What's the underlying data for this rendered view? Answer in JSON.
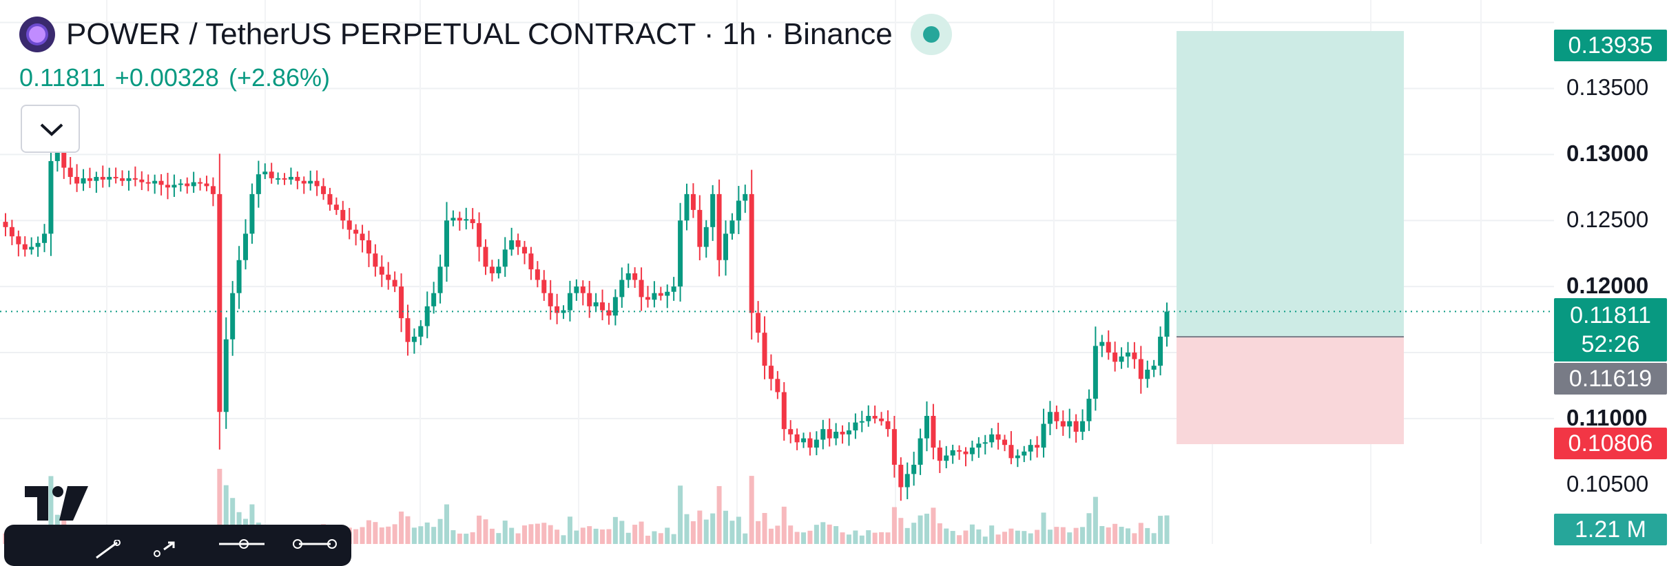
{
  "header": {
    "title": "POWER / TetherUS PERPETUAL CONTRACT · 1h · Binance",
    "last_price": "0.11811",
    "change": "+0.00328",
    "change_pct": "(+2.86%)"
  },
  "price_axis": {
    "labels": [
      {
        "text": "0.13500",
        "value": 0.135,
        "bold": false
      },
      {
        "text": "0.13000",
        "value": 0.13,
        "bold": true
      },
      {
        "text": "0.12500",
        "value": 0.125,
        "bold": false
      },
      {
        "text": "0.12000",
        "value": 0.12,
        "bold": true
      },
      {
        "text": "0.11000",
        "value": 0.11,
        "bold": true
      },
      {
        "text": "0.10500",
        "value": 0.105,
        "bold": false
      }
    ]
  },
  "price_tags": {
    "take_profit": {
      "text": "0.13935",
      "value": 0.13935,
      "color": "#089981"
    },
    "current": {
      "text": "0.11811",
      "value": 0.11811,
      "countdown": "52:26",
      "color": "#089981"
    },
    "entry": {
      "text": "0.11619",
      "value": 0.11619,
      "color": "#787b86"
    },
    "stop_loss": {
      "text": "0.10806",
      "value": 0.10806,
      "color": "#f23645"
    },
    "volume": {
      "text": "1.21 M",
      "color": "#26a69a"
    }
  },
  "position": {
    "entry": 0.11619,
    "take_profit": 0.13935,
    "stop_loss": 0.10806,
    "profit_color": "#cdebe5",
    "loss_color": "#f9d7da"
  },
  "chart_data": {
    "type": "candlestick",
    "title": "POWER / TetherUS PERPETUAL CONTRACT · 1h · Binance",
    "interval": "1h",
    "ylim": [
      0.1005,
      0.1417
    ],
    "grid": true,
    "up_color": "#089981",
    "down_color": "#f23645",
    "close_path": [
      0.1245,
      0.1238,
      0.1232,
      0.1228,
      0.123,
      0.1233,
      0.124,
      0.1295,
      0.131,
      0.129,
      0.1283,
      0.1278,
      0.1282,
      0.128,
      0.1283,
      0.1281,
      0.1283,
      0.1282,
      0.128,
      0.1282,
      0.1281,
      0.1279,
      0.1278,
      0.128,
      0.1277,
      0.1275,
      0.1277,
      0.1278,
      0.1276,
      0.1279,
      0.1278,
      0.1276,
      0.127,
      0.1105,
      0.116,
      0.1195,
      0.122,
      0.124,
      0.127,
      0.1285,
      0.1287,
      0.1282,
      0.1282,
      0.1281,
      0.1283,
      0.128,
      0.1278,
      0.128,
      0.1276,
      0.127,
      0.1262,
      0.1258,
      0.125,
      0.1243,
      0.124,
      0.1235,
      0.1225,
      0.1215,
      0.1209,
      0.1205,
      0.12,
      0.1176,
      0.1158,
      0.1162,
      0.117,
      0.1185,
      0.1195,
      0.1215,
      0.125,
      0.1252,
      0.125,
      0.1251,
      0.1248,
      0.123,
      0.1215,
      0.121,
      0.1215,
      0.1228,
      0.1235,
      0.123,
      0.1225,
      0.1213,
      0.1205,
      0.1195,
      0.1185,
      0.118,
      0.1182,
      0.1195,
      0.12,
      0.1195,
      0.1185,
      0.1188,
      0.1182,
      0.1178,
      0.1192,
      0.1205,
      0.121,
      0.1205,
      0.1192,
      0.119,
      0.1195,
      0.1193,
      0.1196,
      0.12,
      0.125,
      0.127,
      0.1258,
      0.123,
      0.1245,
      0.127,
      0.122,
      0.124,
      0.125,
      0.1265,
      0.127,
      0.118,
      0.1165,
      0.114,
      0.113,
      0.112,
      0.1092,
      0.1088,
      0.1082,
      0.1085,
      0.1078,
      0.1084,
      0.1092,
      0.1085,
      0.109,
      0.1088,
      0.1091,
      0.1097,
      0.1098,
      0.1102,
      0.11,
      0.1098,
      0.1092,
      0.1065,
      0.1048,
      0.1058,
      0.1065,
      0.1085,
      0.1102,
      0.1078,
      0.1068,
      0.1072,
      0.1076,
      0.1075,
      0.1073,
      0.1078,
      0.1081,
      0.1082,
      0.1088,
      0.1084,
      0.108,
      0.107,
      0.1072,
      0.1075,
      0.108,
      0.1078,
      0.1096,
      0.1105,
      0.1098,
      0.1094,
      0.1098,
      0.109,
      0.1098,
      0.1115,
      0.1155,
      0.1158,
      0.115,
      0.1143,
      0.1147,
      0.115,
      0.1145,
      0.113,
      0.1137,
      0.114,
      0.1162,
      0.1181
    ]
  }
}
